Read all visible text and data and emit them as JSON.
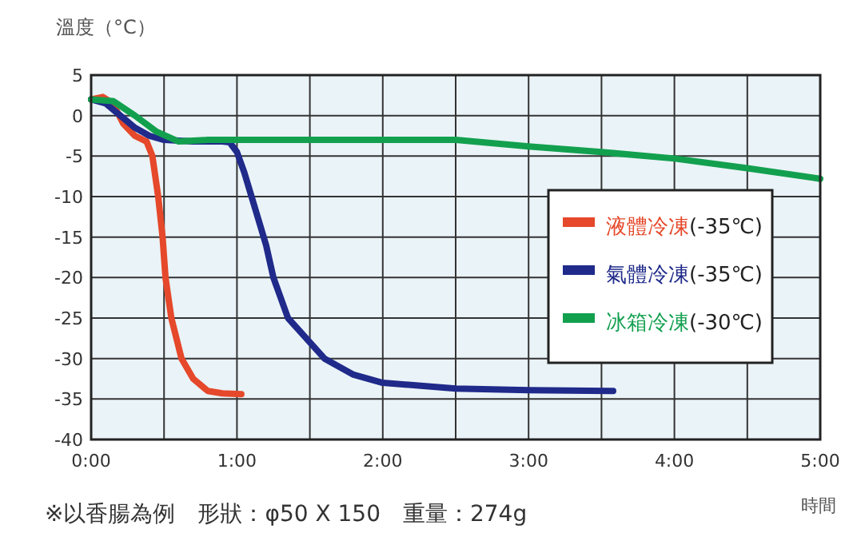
{
  "chart_data": {
    "type": "line",
    "ylabel": "溫度（°C）",
    "xlabel": "時間",
    "legend": "right",
    "grid": true,
    "xlim": [
      0,
      5
    ],
    "ylim": [
      -40,
      5
    ],
    "xticks": [
      {
        "value": 0,
        "label": "0:00"
      },
      {
        "value": 0.5,
        "label": null
      },
      {
        "value": 1,
        "label": "1:00"
      },
      {
        "value": 1.5,
        "label": null
      },
      {
        "value": 2,
        "label": "2:00"
      },
      {
        "value": 2.5,
        "label": null
      },
      {
        "value": 3,
        "label": "3:00"
      },
      {
        "value": 3.5,
        "label": null
      },
      {
        "value": 4,
        "label": "4:00"
      },
      {
        "value": 4.5,
        "label": null
      },
      {
        "value": 5,
        "label": "5:00"
      }
    ],
    "yticks": [
      5,
      0,
      -5,
      -10,
      -15,
      -20,
      -25,
      -30,
      -35,
      -40
    ],
    "annotations": [
      "※以香腸為例　形狀：φ50 X 150　重量：274g"
    ],
    "series": [
      {
        "name": "液體冷凍(-35℃)",
        "color": "#e5482a",
        "x": [
          0,
          0.08,
          0.15,
          0.22,
          0.3,
          0.38,
          0.42,
          0.46,
          0.49,
          0.51,
          0.55,
          0.62,
          0.7,
          0.8,
          0.9,
          1.03
        ],
        "values": [
          2,
          2.3,
          1.5,
          -1,
          -2.5,
          -3.2,
          -5,
          -10,
          -15,
          -20,
          -25,
          -30,
          -32.5,
          -34,
          -34.3,
          -34.4
        ]
      },
      {
        "name": "氣體冷凍(-35℃)",
        "color": "#1f2a8a",
        "x": [
          0,
          0.1,
          0.2,
          0.3,
          0.4,
          0.5,
          0.7,
          0.9,
          0.95,
          1.0,
          1.05,
          1.1,
          1.15,
          1.2,
          1.25,
          1.35,
          1.6,
          1.8,
          2.0,
          2.5,
          3.0,
          3.58
        ],
        "values": [
          2,
          1.5,
          0,
          -1.5,
          -2.5,
          -3,
          -3.2,
          -3.2,
          -3.3,
          -4.5,
          -7,
          -10,
          -13,
          -16,
          -20,
          -25,
          -30,
          -32,
          -33,
          -33.7,
          -33.9,
          -34
        ]
      },
      {
        "name": "冰箱冷凍(-30℃)",
        "color": "#12a04f",
        "x": [
          0,
          0.15,
          0.3,
          0.45,
          0.6,
          0.8,
          1.5,
          2.5,
          3.0,
          3.5,
          4.0,
          4.5,
          5.0
        ],
        "values": [
          2,
          1.8,
          0,
          -2,
          -3.2,
          -3,
          -3,
          -3,
          -3.8,
          -4.5,
          -5.3,
          -6.5,
          -7.8
        ]
      }
    ]
  }
}
